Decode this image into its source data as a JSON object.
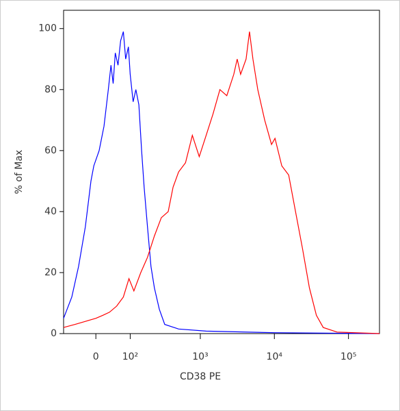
{
  "chart_data": {
    "type": "line",
    "xlabel": "CD38 PE",
    "ylabel": "% of Max",
    "xscale": "biexponential",
    "xlim": [
      -92,
      262144
    ],
    "xticks": [
      0,
      {
        "value": 100,
        "label": "10²"
      },
      {
        "value": 1000,
        "label": "10³"
      },
      {
        "value": 10000,
        "label": "10⁴"
      },
      {
        "value": 100000,
        "label": "10⁵"
      }
    ],
    "ylim": [
      0,
      106
    ],
    "yticks": [
      0,
      20,
      40,
      60,
      80,
      100
    ],
    "series": [
      {
        "color": "#0000ff",
        "x": [
          -92,
          -64,
          -44,
          -26,
          -12,
          -5,
          8,
          20,
          31,
          38,
          44,
          50,
          58,
          66,
          75,
          83,
          93,
          100,
          112,
          124,
          138,
          152,
          166,
          186,
          209,
          234,
          275,
          327,
          507,
          1200,
          10200,
          262144
        ],
        "values": [
          5,
          12,
          22,
          35,
          50,
          55,
          60,
          68,
          80,
          88,
          82,
          92,
          88,
          96,
          99,
          90,
          94,
          85,
          76,
          80,
          75,
          60,
          48,
          35,
          22,
          15,
          8,
          3,
          1.5,
          0.8,
          0.3,
          0
        ]
      },
      {
        "color": "#ff0000",
        "x": [
          -92,
          -54,
          -26,
          0,
          17,
          34,
          54,
          75,
          95,
          115,
          148,
          186,
          234,
          293,
          365,
          426,
          507,
          630,
          780,
          967,
          1200,
          1485,
          1840,
          2280,
          2830,
          3150,
          3500,
          4150,
          4620,
          5140,
          5970,
          7400,
          9150,
          10200,
          12600,
          15600,
          19300,
          23900,
          29700,
          36900,
          45600,
          70200,
          262144
        ],
        "values": [
          2,
          3,
          4,
          5,
          6,
          7,
          9,
          12,
          18,
          14,
          20,
          25,
          32,
          38,
          40,
          48,
          53,
          56,
          65,
          58,
          65,
          72,
          80,
          78,
          85,
          90,
          85,
          90,
          99,
          90,
          80,
          70,
          62,
          64,
          55,
          52,
          40,
          28,
          15,
          6,
          2,
          0.5,
          0
        ]
      }
    ]
  }
}
